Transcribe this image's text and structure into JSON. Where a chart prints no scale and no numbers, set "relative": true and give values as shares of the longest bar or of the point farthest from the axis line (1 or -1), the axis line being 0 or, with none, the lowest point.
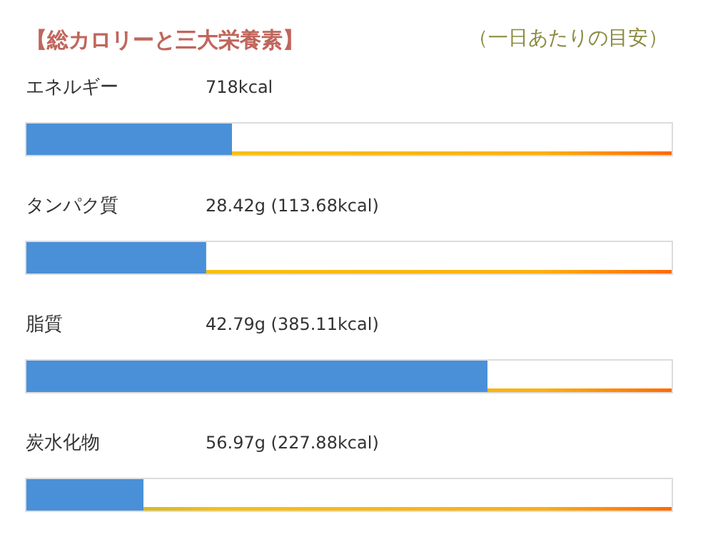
{
  "chart_data": {
    "type": "bar",
    "orientation": "horizontal",
    "relative": true,
    "title": "【総カロリーと三大栄養素】",
    "subtitle": "（一日あたりの目安）",
    "categories": [
      "エネルギー",
      "タンパク質",
      "脂質",
      "炭水化物"
    ],
    "values": [
      0.446,
      0.39,
      1,
      0.254
    ],
    "annotations": [
      "718kcal",
      "28.42g (113.68kcal)",
      "42.79g (385.11kcal)",
      "56.97g (227.88kcal)"
    ],
    "color": "#4a90d8"
  }
}
